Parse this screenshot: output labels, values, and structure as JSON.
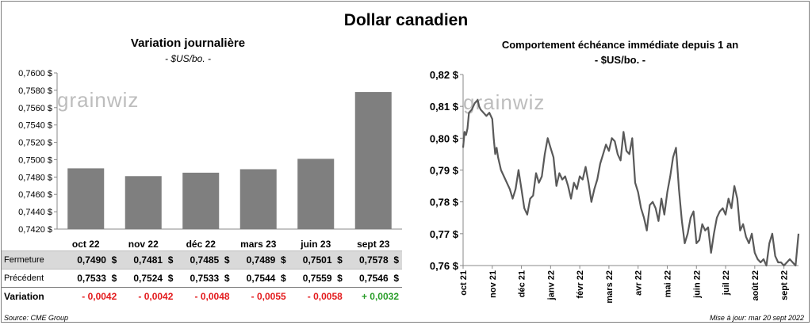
{
  "title": "Dollar canadien",
  "source": "Source: CME Group",
  "updated": "Mise à jour: mar 20 sept 2022",
  "watermark": "grainwiz",
  "chart_data": [
    {
      "type": "bar",
      "title": "Variation  journalière",
      "subtitle": "- $US/bo. -",
      "categories": [
        "oct 22",
        "nov 22",
        "déc 22",
        "mars 23",
        "juin 23",
        "sept 23"
      ],
      "values": [
        0.749,
        0.7481,
        0.7485,
        0.7489,
        0.7501,
        0.7578
      ],
      "ylim": [
        0.742,
        0.76
      ],
      "yticks": [
        "0,7600 $",
        "0,7580 $",
        "0,7560 $",
        "0,7540 $",
        "0,7520 $",
        "0,7500 $",
        "0,7480 $",
        "0,7460 $",
        "0,7440 $",
        "0,7420 $"
      ],
      "bar_color": "#7f7f7f",
      "table": {
        "rows": [
          {
            "label": "Fermeture",
            "values": [
              "0,7490  $",
              "0,7481  $",
              "0,7485  $",
              "0,7489  $",
              "0,7501  $",
              "0,7578  $"
            ]
          },
          {
            "label": "Précédent",
            "values": [
              "0,7533  $",
              "0,7524  $",
              "0,7533  $",
              "0,7544  $",
              "0,7559  $",
              "0,7546  $"
            ]
          },
          {
            "label": "Variation",
            "values": [
              "- 0,0042",
              "- 0,0042",
              "- 0,0048",
              "- 0,0055",
              "- 0,0058",
              "+ 0,0032"
            ]
          }
        ],
        "negative_color": "#e31a1c",
        "positive_color": "#2a9d2a"
      }
    },
    {
      "type": "line",
      "title": "Comportement échéance immédiate depuis 1 an",
      "subtitle": "- $US/bo. -",
      "ylim": [
        0.76,
        0.82
      ],
      "yticks": [
        "0,82 $",
        "0,81 $",
        "0,80 $",
        "0,79 $",
        "0,78 $",
        "0,77 $",
        "0,76 $"
      ],
      "xticks": [
        "oct 21",
        "nov 21",
        "déc 21",
        "janv 22",
        "févr 22",
        "mars 22",
        "avr 22",
        "mai 22",
        "juin 22",
        "juil 22",
        "août 22",
        "sept 22"
      ],
      "line_color": "#595959",
      "x_month_index": [
        0,
        0.05,
        0.1,
        0.15,
        0.2,
        0.3,
        0.4,
        0.5,
        0.55,
        0.6,
        0.7,
        0.8,
        0.9,
        1.0,
        1.05,
        1.1,
        1.15,
        1.2,
        1.3,
        1.4,
        1.5,
        1.6,
        1.7,
        1.8,
        1.9,
        2.0,
        2.1,
        2.2,
        2.3,
        2.4,
        2.5,
        2.6,
        2.7,
        2.8,
        2.9,
        3.0,
        3.1,
        3.2,
        3.3,
        3.4,
        3.5,
        3.6,
        3.7,
        3.8,
        3.9,
        4.0,
        4.1,
        4.2,
        4.3,
        4.4,
        4.5,
        4.6,
        4.7,
        4.8,
        4.9,
        5.0,
        5.1,
        5.2,
        5.3,
        5.4,
        5.5,
        5.6,
        5.7,
        5.8,
        5.9,
        6.0,
        6.1,
        6.2,
        6.3,
        6.4,
        6.5,
        6.6,
        6.7,
        6.8,
        6.9,
        7.0,
        7.1,
        7.2,
        7.3,
        7.4,
        7.5,
        7.6,
        7.7,
        7.8,
        7.9,
        8.0,
        8.1,
        8.2,
        8.3,
        8.4,
        8.5,
        8.6,
        8.7,
        8.8,
        8.9,
        9.0,
        9.1,
        9.2,
        9.3,
        9.4,
        9.5,
        9.6,
        9.7,
        9.8,
        9.9,
        10.0,
        10.1,
        10.2,
        10.3,
        10.4,
        10.5,
        10.6,
        10.7,
        10.8,
        10.9,
        11.0,
        11.1,
        11.2,
        11.3,
        11.4,
        11.5
      ],
      "y": [
        0.797,
        0.802,
        0.801,
        0.803,
        0.808,
        0.809,
        0.811,
        0.812,
        0.81,
        0.809,
        0.808,
        0.807,
        0.808,
        0.806,
        0.8,
        0.795,
        0.797,
        0.794,
        0.79,
        0.788,
        0.786,
        0.784,
        0.781,
        0.784,
        0.79,
        0.784,
        0.778,
        0.776,
        0.781,
        0.782,
        0.789,
        0.786,
        0.788,
        0.795,
        0.8,
        0.797,
        0.794,
        0.785,
        0.789,
        0.787,
        0.788,
        0.785,
        0.781,
        0.786,
        0.784,
        0.788,
        0.787,
        0.791,
        0.786,
        0.78,
        0.784,
        0.787,
        0.792,
        0.795,
        0.798,
        0.796,
        0.8,
        0.799,
        0.795,
        0.793,
        0.802,
        0.796,
        0.795,
        0.8,
        0.786,
        0.783,
        0.778,
        0.775,
        0.771,
        0.779,
        0.78,
        0.778,
        0.774,
        0.781,
        0.776,
        0.783,
        0.788,
        0.794,
        0.797,
        0.784,
        0.774,
        0.767,
        0.77,
        0.775,
        0.777,
        0.767,
        0.768,
        0.773,
        0.771,
        0.772,
        0.764,
        0.77,
        0.775,
        0.777,
        0.778,
        0.776,
        0.781,
        0.778,
        0.785,
        0.781,
        0.771,
        0.773,
        0.769,
        0.767,
        0.77,
        0.764,
        0.762,
        0.761,
        0.762,
        0.76,
        0.767,
        0.77,
        0.763,
        0.761,
        0.761,
        0.76,
        0.761,
        0.762,
        0.761,
        0.76,
        0.77
      ]
    }
  ]
}
